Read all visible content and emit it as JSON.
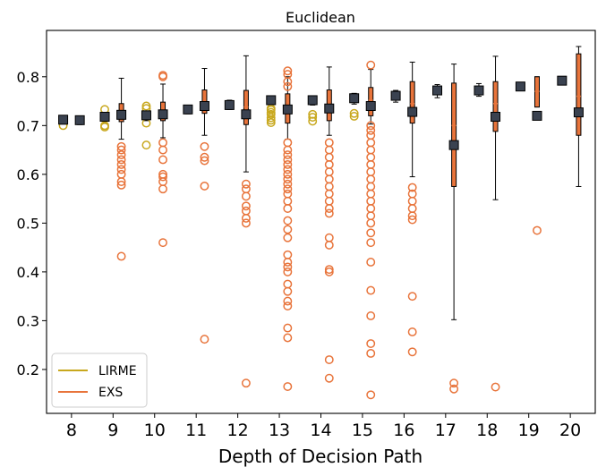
{
  "chart_data": {
    "type": "box",
    "title": "Euclidean",
    "xlabel": "Depth of Decision Path",
    "ylabel": "",
    "ylim": [
      0.11,
      0.895
    ],
    "x_categories": [
      "8",
      "9",
      "10",
      "11",
      "12",
      "13",
      "14",
      "15",
      "16",
      "17",
      "18",
      "19",
      "20"
    ],
    "y_ticks": [
      0.2,
      0.3,
      0.4,
      0.5,
      0.6,
      0.7,
      0.8
    ],
    "y_tick_labels": [
      "0.2",
      "0.3",
      "0.4",
      "0.5",
      "0.6",
      "0.7",
      "0.8"
    ],
    "grid": false,
    "legend_position": "bottom-left",
    "series": [
      {
        "name": "LIRME",
        "color": "#c8a81e",
        "boxes": [
          {
            "cat": "8",
            "q1": 0.707,
            "median": 0.712,
            "q3": 0.716,
            "whislo": 0.703,
            "whishi": 0.719,
            "mean": 0.712,
            "fliers": [
              0.7
            ]
          },
          {
            "cat": "9",
            "q1": 0.713,
            "median": 0.718,
            "q3": 0.723,
            "whislo": 0.706,
            "whishi": 0.727,
            "mean": 0.718,
            "fliers": [
              0.7,
              0.697,
              0.733
            ]
          },
          {
            "cat": "10",
            "q1": 0.716,
            "median": 0.721,
            "q3": 0.726,
            "whislo": 0.71,
            "whishi": 0.73,
            "mean": 0.721,
            "fliers": [
              0.705,
              0.735,
              0.74,
              0.66
            ]
          },
          {
            "cat": "11",
            "q1": 0.729,
            "median": 0.733,
            "q3": 0.738,
            "whislo": 0.724,
            "whishi": 0.741,
            "mean": 0.733,
            "fliers": []
          },
          {
            "cat": "12",
            "q1": 0.738,
            "median": 0.742,
            "q3": 0.747,
            "whislo": 0.733,
            "whishi": 0.752,
            "mean": 0.742,
            "fliers": []
          },
          {
            "cat": "13",
            "q1": 0.748,
            "median": 0.752,
            "q3": 0.756,
            "whislo": 0.744,
            "whishi": 0.759,
            "mean": 0.752,
            "fliers": [
              0.706,
              0.711,
              0.716,
              0.723,
              0.727,
              0.732,
              0.735
            ]
          },
          {
            "cat": "14",
            "q1": 0.747,
            "median": 0.752,
            "q3": 0.757,
            "whislo": 0.742,
            "whishi": 0.761,
            "mean": 0.752,
            "fliers": [
              0.709,
              0.717,
              0.723
            ]
          },
          {
            "cat": "15",
            "q1": 0.751,
            "median": 0.756,
            "q3": 0.761,
            "whislo": 0.744,
            "whishi": 0.766,
            "mean": 0.756,
            "fliers": [
              0.719,
              0.725
            ]
          },
          {
            "cat": "16",
            "q1": 0.755,
            "median": 0.761,
            "q3": 0.766,
            "whislo": 0.748,
            "whishi": 0.772,
            "mean": 0.761,
            "fliers": []
          },
          {
            "cat": "17",
            "q1": 0.767,
            "median": 0.772,
            "q3": 0.777,
            "whislo": 0.757,
            "whishi": 0.784,
            "mean": 0.772,
            "fliers": []
          },
          {
            "cat": "18",
            "q1": 0.767,
            "median": 0.772,
            "q3": 0.778,
            "whislo": 0.76,
            "whishi": 0.786,
            "mean": 0.772,
            "fliers": []
          },
          {
            "cat": "19",
            "q1": 0.776,
            "median": 0.78,
            "q3": 0.784,
            "whislo": 0.772,
            "whishi": 0.788,
            "mean": 0.78,
            "fliers": []
          },
          {
            "cat": "20",
            "q1": 0.788,
            "median": 0.792,
            "q3": 0.796,
            "whislo": 0.784,
            "whishi": 0.8,
            "mean": 0.792,
            "fliers": []
          }
        ]
      },
      {
        "name": "EXS",
        "color": "#e8743b",
        "boxes": [
          {
            "cat": "8",
            "q1": 0.705,
            "median": 0.711,
            "q3": 0.716,
            "whislo": 0.702,
            "whishi": 0.719,
            "mean": 0.711,
            "fliers": []
          },
          {
            "cat": "9",
            "q1": 0.708,
            "median": 0.72,
            "q3": 0.745,
            "whislo": 0.672,
            "whishi": 0.797,
            "mean": 0.722,
            "fliers": [
              0.657,
              0.65,
              0.64,
              0.63,
              0.62,
              0.61,
              0.6,
              0.585,
              0.578,
              0.432
            ]
          },
          {
            "cat": "10",
            "q1": 0.71,
            "median": 0.723,
            "q3": 0.748,
            "whislo": 0.675,
            "whishi": 0.785,
            "mean": 0.723,
            "fliers": [
              0.803,
              0.8,
              0.665,
              0.65,
              0.63,
              0.6,
              0.595,
              0.585,
              0.57,
              0.46
            ]
          },
          {
            "cat": "11",
            "q1": 0.725,
            "median": 0.745,
            "q3": 0.773,
            "whislo": 0.68,
            "whishi": 0.817,
            "mean": 0.74,
            "fliers": [
              0.657,
              0.635,
              0.628,
              0.576,
              0.262
            ]
          },
          {
            "cat": "12",
            "q1": 0.702,
            "median": 0.738,
            "q3": 0.772,
            "whislo": 0.605,
            "whishi": 0.843,
            "mean": 0.723,
            "fliers": [
              0.58,
              0.57,
              0.555,
              0.535,
              0.525,
              0.51,
              0.5,
              0.172
            ]
          },
          {
            "cat": "13",
            "q1": 0.705,
            "median": 0.74,
            "q3": 0.765,
            "whislo": 0.672,
            "whishi": 0.8,
            "mean": 0.733,
            "fliers": [
              0.812,
              0.805,
              0.79,
              0.78,
              0.665,
              0.65,
              0.64,
              0.63,
              0.62,
              0.61,
              0.6,
              0.59,
              0.58,
              0.57,
              0.56,
              0.545,
              0.53,
              0.505,
              0.487,
              0.47,
              0.435,
              0.42,
              0.41,
              0.4,
              0.375,
              0.36,
              0.34,
              0.33,
              0.285,
              0.265,
              0.165
            ]
          },
          {
            "cat": "14",
            "q1": 0.71,
            "median": 0.74,
            "q3": 0.773,
            "whislo": 0.68,
            "whishi": 0.82,
            "mean": 0.735,
            "fliers": [
              0.665,
              0.65,
              0.635,
              0.62,
              0.605,
              0.59,
              0.575,
              0.56,
              0.545,
              0.53,
              0.52,
              0.47,
              0.455,
              0.405,
              0.4,
              0.22,
              0.182
            ]
          },
          {
            "cat": "15",
            "q1": 0.72,
            "median": 0.752,
            "q3": 0.778,
            "whislo": 0.703,
            "whishi": 0.815,
            "mean": 0.74,
            "fliers": [
              0.824,
              0.7,
              0.69,
              0.68,
              0.665,
              0.65,
              0.635,
              0.62,
              0.605,
              0.59,
              0.575,
              0.56,
              0.545,
              0.53,
              0.515,
              0.5,
              0.48,
              0.46,
              0.42,
              0.362,
              0.31,
              0.253,
              0.233,
              0.148
            ]
          },
          {
            "cat": "16",
            "q1": 0.705,
            "median": 0.745,
            "q3": 0.79,
            "whislo": 0.595,
            "whishi": 0.83,
            "mean": 0.728,
            "fliers": [
              0.573,
              0.56,
              0.545,
              0.53,
              0.515,
              0.507,
              0.35,
              0.277,
              0.236
            ]
          },
          {
            "cat": "17",
            "q1": 0.575,
            "median": 0.7,
            "q3": 0.787,
            "whislo": 0.302,
            "whishi": 0.826,
            "mean": 0.66,
            "fliers": [
              0.172,
              0.16
            ]
          },
          {
            "cat": "18",
            "q1": 0.688,
            "median": 0.745,
            "q3": 0.79,
            "whislo": 0.548,
            "whishi": 0.842,
            "mean": 0.718,
            "fliers": [
              0.164
            ]
          },
          {
            "cat": "19",
            "q1": 0.738,
            "median": 0.77,
            "q3": 0.8,
            "whislo": 0.738,
            "whishi": 0.8,
            "mean": 0.72,
            "fliers": [
              0.485
            ]
          },
          {
            "cat": "20",
            "q1": 0.68,
            "median": 0.76,
            "q3": 0.847,
            "whislo": 0.575,
            "whishi": 0.862,
            "mean": 0.727,
            "fliers": []
          }
        ]
      }
    ]
  }
}
